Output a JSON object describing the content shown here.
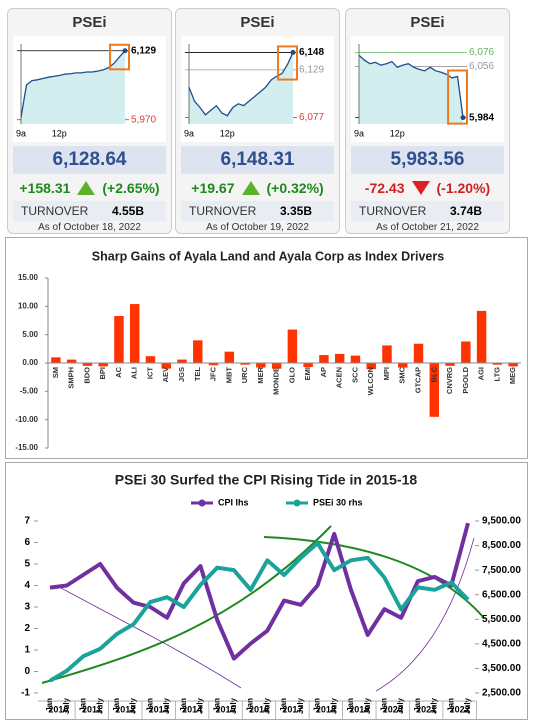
{
  "cards": [
    {
      "title": "PSEi",
      "value": "6,128.64",
      "change": "+158.31",
      "change_pct": "(+2.65%)",
      "turnover_label": "TURNOVER",
      "turnover": "4.55B",
      "as_of": "As of October 18, 2022",
      "spark": {
        "type": "line",
        "color": "#1f4e8c",
        "fill": "#d3eeee",
        "categories": [
          "9a",
          null,
          null,
          null,
          null,
          null,
          null,
          "12p",
          null,
          null,
          null,
          null,
          null,
          null,
          null,
          null,
          null,
          null,
          null,
          null
        ],
        "values": [
          5975,
          6050,
          6060,
          6062,
          6065,
          6068,
          6070,
          6072,
          6075,
          6076,
          6078,
          6078,
          6080,
          6080,
          6082,
          6085,
          6090,
          6100,
          6115,
          6129
        ],
        "ylim": [
          5960,
          6140
        ],
        "yticks": [
          {
            "value": 6129,
            "label": "6,129"
          },
          {
            "value": 5970,
            "label": "5,970"
          }
        ],
        "tick_colors": [
          "#000000",
          "#e03c31"
        ]
      }
    },
    {
      "title": "PSEi",
      "value": "6,148.31",
      "change": "+19.67",
      "change_pct": "(+0.32%)",
      "turnover_label": "TURNOVER",
      "turnover": "3.35B",
      "as_of": "As of October 19, 2022",
      "spark": {
        "type": "line",
        "color": "#1f4e8c",
        "fill": "#d3eeee",
        "categories": [
          "9a",
          null,
          null,
          null,
          null,
          null,
          null,
          "12p",
          null,
          null,
          null,
          null,
          null,
          null,
          null,
          null,
          null,
          null,
          null,
          null
        ],
        "values": [
          6110,
          6095,
          6088,
          6080,
          6085,
          6090,
          6082,
          6079,
          6088,
          6092,
          6090,
          6095,
          6100,
          6105,
          6110,
          6118,
          6122,
          6125,
          6135,
          6148
        ],
        "ylim": [
          6070,
          6155
        ],
        "yticks": [
          {
            "value": 6148,
            "label": "6,148"
          },
          {
            "value": 6129,
            "label": "6,129"
          },
          {
            "value": 6077,
            "label": "6,077"
          }
        ],
        "tick_colors": [
          "#000000",
          "#999999",
          "#e03c31"
        ]
      }
    },
    {
      "title": "PSEi",
      "value": "5,983.56",
      "change": "-72.43",
      "change_pct": "(-1.20%)",
      "turnover_label": "TURNOVER",
      "turnover": "3.74B",
      "as_of": "As of October 21, 2022",
      "spark": {
        "type": "line",
        "color": "#1f4e8c",
        "fill": "#d3eeee",
        "categories": [
          "9a",
          null,
          null,
          null,
          null,
          null,
          null,
          "12p",
          null,
          null,
          null,
          null,
          null,
          null,
          null,
          null,
          null,
          null,
          null,
          null
        ],
        "values": [
          6072,
          6065,
          6060,
          6062,
          6058,
          6060,
          6063,
          6055,
          6058,
          6060,
          6055,
          6052,
          6050,
          6055,
          6050,
          6048,
          6045,
          6040,
          6042,
          5984
        ],
        "ylim": [
          5975,
          6085
        ],
        "yticks": [
          {
            "value": 6076,
            "label": "6,076"
          },
          {
            "value": 6056,
            "label": "6,056"
          },
          {
            "value": 5984,
            "label": "5,984"
          }
        ],
        "tick_colors": [
          "#5cb85c",
          "#999999",
          "#000000"
        ]
      }
    }
  ],
  "chart_data": [
    {
      "type": "bar",
      "title": "Sharp Gains of Ayala Land and Ayala Corp as Index Drivers",
      "color": "#ff3300",
      "categories": [
        "SM",
        "SMPH",
        "BDO",
        "BPI",
        "AC",
        "ALI",
        "ICT",
        "AEV",
        "JGS",
        "TEL",
        "JFC",
        "MBT",
        "URC",
        "MER",
        "MONDE",
        "GLO",
        "EMI",
        "AP",
        "ACEN",
        "SCC",
        "WLCON",
        "MPI",
        "SMC",
        "GTCAP",
        "BLC",
        "CNVRG",
        "PGOLD",
        "AGI",
        "LTG",
        "MEG"
      ],
      "values": [
        1.0,
        0.6,
        -0.5,
        -0.6,
        8.3,
        10.4,
        1.2,
        -1.0,
        0.6,
        4.0,
        -0.4,
        2.0,
        -0.3,
        -0.8,
        -1.0,
        5.9,
        -0.7,
        1.4,
        1.6,
        1.3,
        -1.1,
        3.1,
        -0.8,
        3.4,
        -9.5,
        -0.5,
        3.8,
        9.2,
        -0.3,
        -0.6
      ],
      "ylim": [
        -15,
        15
      ],
      "yticks": [
        {
          "value": 15,
          "label": "15.00"
        },
        {
          "value": 10,
          "label": "10.00"
        },
        {
          "value": 5,
          "label": "5.00"
        },
        {
          "value": 0,
          "label": "0.00"
        },
        {
          "value": -5,
          "label": "-5.00"
        },
        {
          "value": -10,
          "label": "-10.00"
        },
        {
          "value": -15,
          "label": "-15.00"
        }
      ]
    },
    {
      "type": "line",
      "title": "PSEi 30 Surfed the CPI Rising Tide in 2015-18",
      "categories": [
        "Jan",
        "July",
        "Jan",
        "July",
        "Jan",
        "July",
        "Jan",
        "July",
        "Jan",
        "July",
        "Jan",
        "July",
        "Jan",
        "July",
        "Jan",
        "July",
        "Jan",
        "July",
        "Jan",
        "July",
        "Jan",
        "July",
        "Jan",
        "July",
        "Jan",
        "July"
      ],
      "years": [
        "2010",
        "2011",
        "2012",
        "2013",
        "2014",
        "2015",
        "2016",
        "2017",
        "2018",
        "2019",
        "2020",
        "2021",
        "2022"
      ],
      "series": [
        {
          "name": "CPI lhs",
          "color": "#7030a0",
          "values": [
            3.9,
            4.0,
            4.5,
            5.0,
            3.9,
            3.2,
            3.0,
            2.5,
            4.1,
            4.9,
            2.4,
            0.6,
            1.3,
            1.9,
            3.3,
            3.1,
            4.0,
            6.4,
            3.8,
            1.7,
            2.9,
            2.5,
            4.2,
            4.4,
            4.0,
            6.9
          ]
        },
        {
          "name": "PSEi 30 rhs",
          "color": "#1aa39a",
          "axis": "y2",
          "values": [
            3000,
            3400,
            4000,
            4300,
            4900,
            5300,
            6200,
            6400,
            6000,
            6900,
            7600,
            7500,
            6700,
            7900,
            7300,
            8000,
            8600,
            7500,
            7900,
            8000,
            7200,
            5900,
            6800,
            6700,
            7000,
            6300
          ]
        }
      ],
      "ylim": [
        -1,
        7
      ],
      "yticks": [
        -1,
        0,
        1,
        2,
        3,
        4,
        5,
        6,
        7
      ],
      "y2lim": [
        2500,
        9500
      ],
      "y2ticks": [
        {
          "value": 2500,
          "label": "2,500.00"
        },
        {
          "value": 3500,
          "label": "3,500.00"
        },
        {
          "value": 4500,
          "label": "4,500.00"
        },
        {
          "value": 5500,
          "label": "5,500.00"
        },
        {
          "value": 6500,
          "label": "6,500.00"
        },
        {
          "value": 7500,
          "label": "7,500.00"
        },
        {
          "value": 8500,
          "label": "8,500.00"
        },
        {
          "value": 9500,
          "label": "9,500.00"
        }
      ]
    }
  ]
}
